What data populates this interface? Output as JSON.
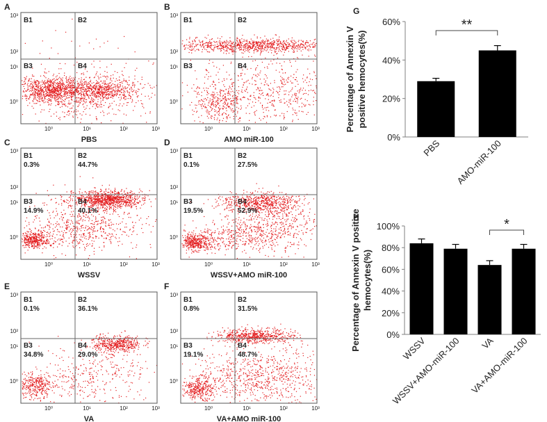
{
  "flow_panels": [
    {
      "letter": "A",
      "caption": "PBS",
      "quadrants": [
        {
          "name": "B1",
          "pct": ""
        },
        {
          "name": "B2",
          "pct": ""
        },
        {
          "name": "B3",
          "pct": ""
        },
        {
          "name": "B4",
          "pct": ""
        }
      ],
      "y_ticks": [
        "10³",
        "10²",
        "10¹",
        "10⁰"
      ],
      "x_ticks": [
        "10⁰",
        "10¹",
        "10²",
        "10³"
      ]
    },
    {
      "letter": "B",
      "caption": "AMO miR-100",
      "quadrants": [
        {
          "name": "B1",
          "pct": ""
        },
        {
          "name": "B2",
          "pct": ""
        },
        {
          "name": "B3",
          "pct": ""
        },
        {
          "name": "B4",
          "pct": ""
        }
      ],
      "y_ticks": [
        "10³",
        "10²",
        "10¹",
        "10⁰"
      ],
      "x_ticks": [
        "10⁰",
        "10¹",
        "10²",
        "10³"
      ]
    },
    {
      "letter": "C",
      "caption": "WSSV",
      "quadrants": [
        {
          "name": "B1",
          "pct": "0.3%"
        },
        {
          "name": "B2",
          "pct": "44.7%"
        },
        {
          "name": "B3",
          "pct": "14.9%"
        },
        {
          "name": "B4",
          "pct": "40.1%"
        }
      ],
      "y_ticks": [
        "10³",
        "10²",
        "10¹",
        "10⁰"
      ],
      "x_ticks": [
        "10⁰",
        "10¹",
        "10²",
        "10³"
      ]
    },
    {
      "letter": "D",
      "caption": "WSSV+AMO miR-100",
      "quadrants": [
        {
          "name": "B1",
          "pct": "0.1%"
        },
        {
          "name": "B2",
          "pct": "27.5%"
        },
        {
          "name": "B3",
          "pct": "19.5%"
        },
        {
          "name": "B4",
          "pct": "52.9%"
        }
      ],
      "y_ticks": [
        "10³",
        "10²",
        "10¹",
        "10⁰"
      ],
      "x_ticks": [
        "10⁰",
        "10¹",
        "10²",
        "10³"
      ]
    },
    {
      "letter": "E",
      "caption": "VA",
      "quadrants": [
        {
          "name": "B1",
          "pct": "0.1%"
        },
        {
          "name": "B2",
          "pct": "36.1%"
        },
        {
          "name": "B3",
          "pct": "34.8%"
        },
        {
          "name": "B4",
          "pct": "29.0%"
        }
      ],
      "y_ticks": [
        "10³",
        "10²",
        "10¹",
        "10⁰"
      ],
      "x_ticks": [
        "10⁰",
        "10¹",
        "10²",
        "10³"
      ]
    },
    {
      "letter": "F",
      "caption": "VA+AMO miR-100",
      "quadrants": [
        {
          "name": "B1",
          "pct": "0.8%"
        },
        {
          "name": "B2",
          "pct": "31.5%"
        },
        {
          "name": "B3",
          "pct": "19.1%"
        },
        {
          "name": "B4",
          "pct": "48.7%"
        }
      ],
      "y_ticks": [
        "10³",
        "10²",
        "10¹",
        "10⁰"
      ],
      "x_ticks": [
        "10⁰",
        "10¹",
        "10²",
        "10³"
      ]
    }
  ],
  "colors": {
    "dots": "#e31a1c",
    "bars": "#000000",
    "axis": "#7f7f7f"
  },
  "chart_data": [
    {
      "id": "G",
      "type": "bar",
      "title": "",
      "ylabel": "Percentage of Annexin V positive hemocytes(%)",
      "ylabel_lines": [
        "Percentage of Annexin V",
        "positive hemocytes(%)"
      ],
      "categories": [
        "PBS",
        "AMO-miR-100"
      ],
      "values": [
        29,
        45
      ],
      "errors": [
        1.5,
        2.5
      ],
      "ylim": [
        0,
        60
      ],
      "yticks": [
        0,
        20,
        40,
        60
      ],
      "ytick_labels": [
        "0%",
        "20%",
        "40%",
        "60%"
      ],
      "significance": {
        "between": [
          0,
          1
        ],
        "label": "**"
      }
    },
    {
      "id": "H",
      "type": "bar",
      "title": "",
      "ylabel": "Percentage of Annexin V positive hemocytes(%)",
      "ylabel_lines": [
        "Percentage of Annexin V positive",
        "hemocytes(%)"
      ],
      "categories": [
        "WSSV",
        "WSSV+AMO-miR-100",
        "VA",
        "VA+AMO-miR-100"
      ],
      "values": [
        84,
        79,
        64,
        79
      ],
      "errors": [
        4,
        4,
        4,
        4
      ],
      "ylim": [
        0,
        100
      ],
      "yticks": [
        0,
        20,
        40,
        60,
        80,
        100
      ],
      "ytick_labels": [
        "0%",
        "20%",
        "40%",
        "60%",
        "80%",
        "100%"
      ],
      "significance": {
        "between": [
          2,
          3
        ],
        "label": "*"
      }
    }
  ]
}
